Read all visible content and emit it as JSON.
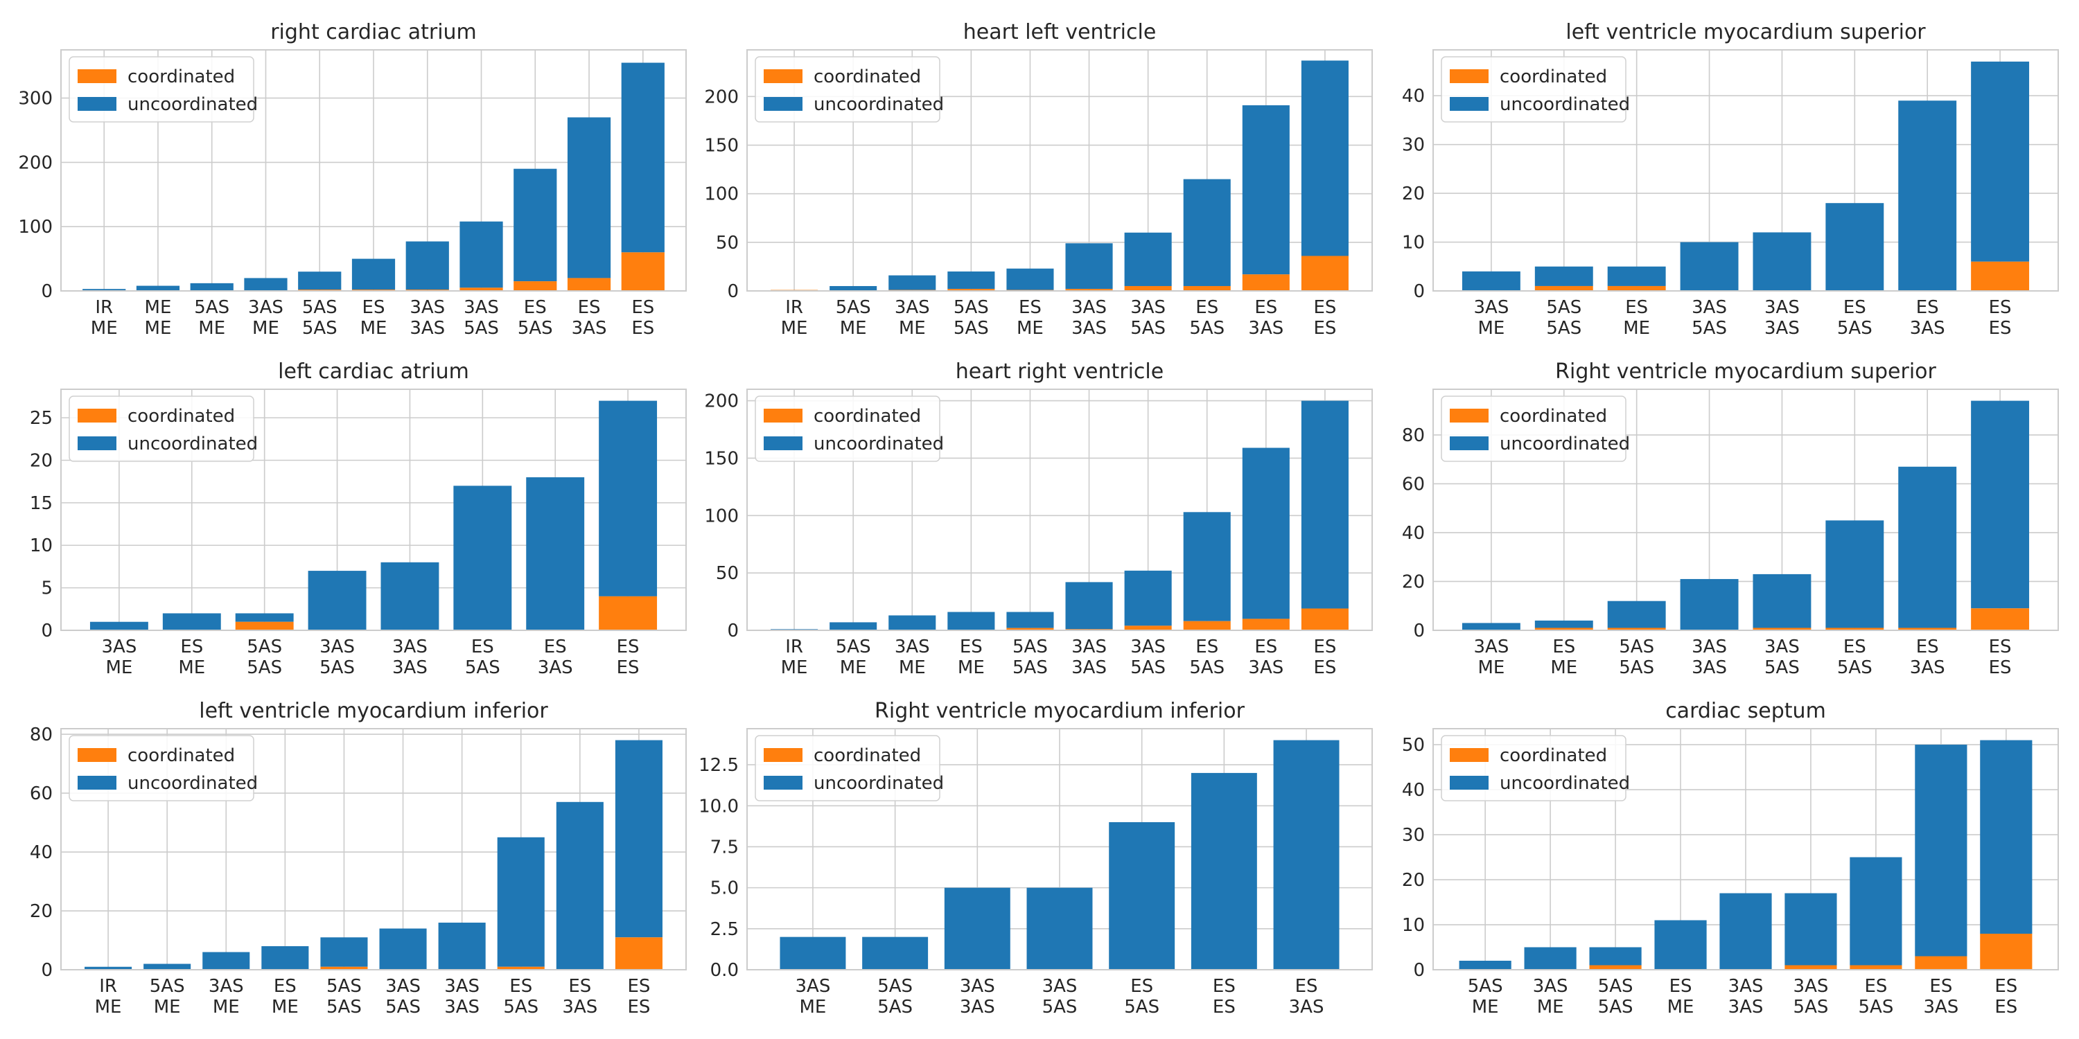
{
  "colors": {
    "coordinated": "#ff7f0e",
    "uncoordinated": "#1f77b4",
    "grid": "#cccccc",
    "frame": "#cccccc"
  },
  "legend": {
    "position": "upper-left",
    "entries": [
      "coordinated",
      "uncoordinated"
    ]
  },
  "chart_data": [
    {
      "type": "bar",
      "stacked": true,
      "title": "right cardiac atrium",
      "categories": [
        "IR\nME",
        "ME\nME",
        "5AS\nME",
        "3AS\nME",
        "5AS\n5AS",
        "ES\nME",
        "3AS\n3AS",
        "3AS\n5AS",
        "ES\n5AS",
        "ES\n3AS",
        "ES\nES"
      ],
      "series": [
        {
          "name": "coordinated",
          "values": [
            0,
            0,
            0,
            0,
            2,
            2,
            2,
            5,
            15,
            20,
            60
          ]
        },
        {
          "name": "uncoordinated",
          "values": [
            3,
            8,
            12,
            20,
            28,
            48,
            75,
            103,
            175,
            250,
            295
          ]
        }
      ],
      "ylim": [
        0,
        375
      ],
      "yticks": [
        0,
        100,
        200,
        300
      ],
      "grid": true
    },
    {
      "type": "bar",
      "stacked": true,
      "title": "heart left ventricle",
      "categories": [
        "IR\nME",
        "5AS\nME",
        "3AS\nME",
        "5AS\n5AS",
        "ES\nME",
        "3AS\n3AS",
        "3AS\n5AS",
        "ES\n5AS",
        "ES\n3AS",
        "ES\nES"
      ],
      "series": [
        {
          "name": "coordinated",
          "values": [
            1,
            0,
            1,
            2,
            1,
            2,
            5,
            5,
            17,
            36
          ]
        },
        {
          "name": "uncoordinated",
          "values": [
            0,
            5,
            15,
            18,
            22,
            47,
            55,
            110,
            174,
            201
          ]
        }
      ],
      "ylim": [
        0,
        248
      ],
      "yticks": [
        0,
        50,
        100,
        150,
        200
      ],
      "grid": true
    },
    {
      "type": "bar",
      "stacked": true,
      "title": "left ventricle myocardium superior",
      "categories": [
        "3AS\nME",
        "5AS\n5AS",
        "ES\nME",
        "3AS\n5AS",
        "3AS\n3AS",
        "ES\n5AS",
        "ES\n3AS",
        "ES\nES"
      ],
      "series": [
        {
          "name": "coordinated",
          "values": [
            0,
            1,
            1,
            0,
            0,
            0,
            0,
            6
          ]
        },
        {
          "name": "uncoordinated",
          "values": [
            4,
            4,
            4,
            10,
            12,
            18,
            39,
            41
          ]
        }
      ],
      "ylim": [
        0,
        49.4
      ],
      "yticks": [
        0,
        10,
        20,
        30,
        40
      ],
      "grid": true
    },
    {
      "type": "bar",
      "stacked": true,
      "title": "left cardiac atrium",
      "categories": [
        "3AS\nME",
        "ES\nME",
        "5AS\n5AS",
        "3AS\n5AS",
        "3AS\n3AS",
        "ES\n5AS",
        "ES\n3AS",
        "ES\nES"
      ],
      "series": [
        {
          "name": "coordinated",
          "values": [
            0,
            0,
            1,
            0,
            0,
            0,
            0,
            4
          ]
        },
        {
          "name": "uncoordinated",
          "values": [
            1,
            2,
            1,
            7,
            8,
            17,
            18,
            23
          ]
        }
      ],
      "ylim": [
        0,
        28.35
      ],
      "yticks": [
        0,
        5,
        10,
        15,
        20,
        25
      ],
      "grid": true
    },
    {
      "type": "bar",
      "stacked": true,
      "title": "heart right ventricle",
      "categories": [
        "IR\nME",
        "5AS\nME",
        "3AS\nME",
        "ES\nME",
        "5AS\n5AS",
        "3AS\n3AS",
        "3AS\n5AS",
        "ES\n5AS",
        "ES\n3AS",
        "ES\nES"
      ],
      "series": [
        {
          "name": "coordinated",
          "values": [
            0,
            0,
            0,
            0,
            2,
            1,
            4,
            8,
            10,
            19
          ]
        },
        {
          "name": "uncoordinated",
          "values": [
            1,
            7,
            13,
            16,
            14,
            41,
            48,
            95,
            149,
            181
          ]
        }
      ],
      "ylim": [
        0,
        210
      ],
      "yticks": [
        0,
        50,
        100,
        150,
        200
      ],
      "grid": true
    },
    {
      "type": "bar",
      "stacked": true,
      "title": "Right ventricle myocardium superior",
      "categories": [
        "3AS\nME",
        "ES\nME",
        "5AS\n5AS",
        "3AS\n3AS",
        "3AS\n5AS",
        "ES\n5AS",
        "ES\n3AS",
        "ES\nES"
      ],
      "series": [
        {
          "name": "coordinated",
          "values": [
            0,
            1,
            1,
            0,
            1,
            1,
            1,
            9
          ]
        },
        {
          "name": "uncoordinated",
          "values": [
            3,
            3,
            11,
            21,
            22,
            44,
            66,
            85
          ]
        }
      ],
      "ylim": [
        0,
        98.7
      ],
      "yticks": [
        0,
        20,
        40,
        60,
        80
      ],
      "grid": true
    },
    {
      "type": "bar",
      "stacked": true,
      "title": "left ventricle myocardium inferior",
      "categories": [
        "IR\nME",
        "5AS\nME",
        "3AS\nME",
        "ES\nME",
        "5AS\n5AS",
        "3AS\n5AS",
        "3AS\n3AS",
        "ES\n5AS",
        "ES\n3AS",
        "ES\nES"
      ],
      "series": [
        {
          "name": "coordinated",
          "values": [
            0,
            0,
            0,
            0,
            1,
            0,
            0,
            1,
            0,
            11
          ]
        },
        {
          "name": "uncoordinated",
          "values": [
            1,
            2,
            6,
            8,
            10,
            14,
            16,
            44,
            57,
            67
          ]
        }
      ],
      "ylim": [
        0,
        81.9
      ],
      "yticks": [
        0,
        20,
        40,
        60,
        80
      ],
      "grid": true
    },
    {
      "type": "bar",
      "stacked": true,
      "title": "Right ventricle myocardium inferior",
      "categories": [
        "3AS\nME",
        "5AS\n5AS",
        "3AS\n3AS",
        "3AS\n5AS",
        "ES\n5AS",
        "ES\nES",
        "ES\n3AS"
      ],
      "series": [
        {
          "name": "coordinated",
          "values": [
            0,
            0,
            0,
            0,
            0,
            0,
            0
          ]
        },
        {
          "name": "uncoordinated",
          "values": [
            2,
            2,
            5,
            5,
            9,
            12,
            14
          ]
        }
      ],
      "ylim": [
        0,
        14.7
      ],
      "yticks": [
        0,
        2.5,
        5.0,
        7.5,
        10.0,
        12.5
      ],
      "tick_decimals": 1,
      "grid": true
    },
    {
      "type": "bar",
      "stacked": true,
      "title": "cardiac septum",
      "categories": [
        "5AS\nME",
        "3AS\nME",
        "5AS\n5AS",
        "ES\nME",
        "3AS\n3AS",
        "3AS\n5AS",
        "ES\n5AS",
        "ES\n3AS",
        "ES\nES"
      ],
      "series": [
        {
          "name": "coordinated",
          "values": [
            0,
            0,
            1,
            0,
            0,
            1,
            1,
            3,
            8
          ]
        },
        {
          "name": "uncoordinated",
          "values": [
            2,
            5,
            4,
            11,
            17,
            16,
            24,
            47,
            43
          ]
        }
      ],
      "ylim": [
        0,
        53.55
      ],
      "yticks": [
        0,
        10,
        20,
        30,
        40,
        50
      ],
      "grid": true
    }
  ]
}
